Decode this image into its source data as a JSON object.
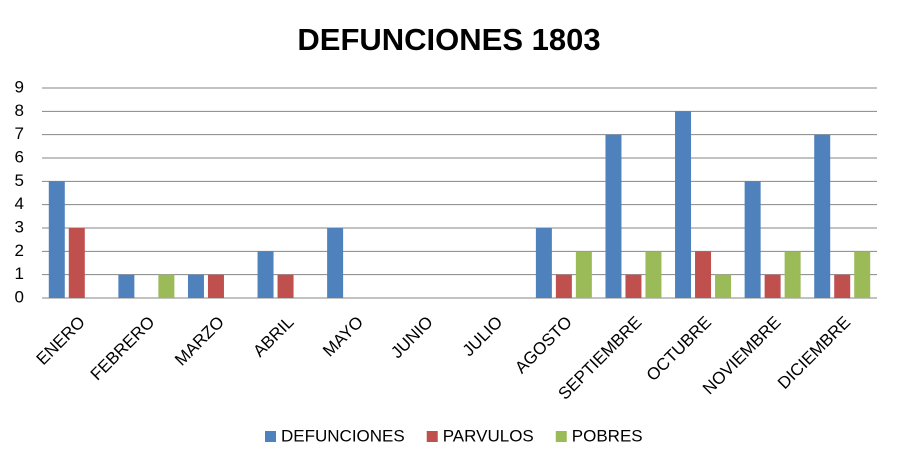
{
  "chart_data": {
    "type": "bar",
    "title": "DEFUNCIONES  1803",
    "categories": [
      "ENERO",
      "FEBRERO",
      "MARZO",
      "ABRIL",
      "MAYO",
      "JUNIO",
      "JULIO",
      "AGOSTO",
      "SEPTIEMBRE",
      "OCTUBRE",
      "NOVIEMBRE",
      "DICIEMBRE"
    ],
    "series": [
      {
        "name": "DEFUNCIONES",
        "color": "#4f81bd",
        "values": [
          5,
          1,
          1,
          2,
          3,
          0,
          0,
          3,
          7,
          8,
          5,
          7
        ]
      },
      {
        "name": "PARVULOS",
        "color": "#c0504d",
        "values": [
          3,
          0,
          1,
          1,
          0,
          0,
          0,
          1,
          1,
          2,
          1,
          1
        ]
      },
      {
        "name": "POBRES",
        "color": "#9bbb59",
        "values": [
          0,
          1,
          0,
          0,
          0,
          0,
          0,
          2,
          2,
          1,
          2,
          2
        ]
      }
    ],
    "ylim": [
      0,
      9
    ],
    "yticks": [
      0,
      1,
      2,
      3,
      4,
      5,
      6,
      7,
      8,
      9
    ],
    "grid": true,
    "legend": "bottom"
  }
}
